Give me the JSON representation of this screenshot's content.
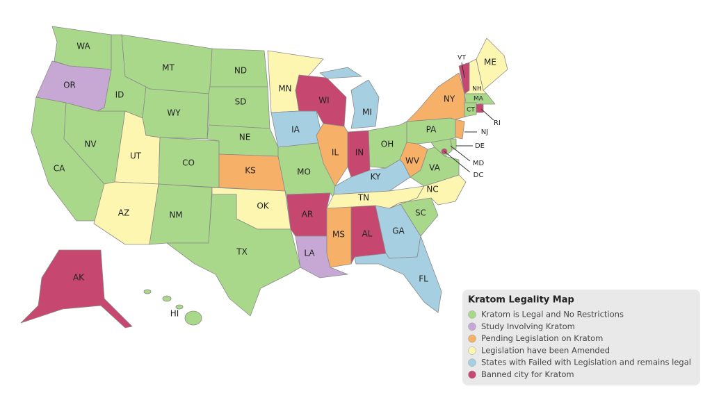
{
  "map": {
    "states": [
      {
        "label": "WA",
        "status": "Kratom is Legal and No Restrictions"
      },
      {
        "label": "OR",
        "status": "Study Involving Kratom"
      },
      {
        "label": "CA",
        "status": "Kratom is Legal and No Restrictions"
      },
      {
        "label": "NV",
        "status": "Kratom is Legal and No Restrictions"
      },
      {
        "label": "ID",
        "status": "Kratom is Legal and No Restrictions"
      },
      {
        "label": "MT",
        "status": "Kratom is Legal and No Restrictions"
      },
      {
        "label": "WY",
        "status": "Kratom is Legal and No Restrictions"
      },
      {
        "label": "UT",
        "status": "Legislation have been Amended"
      },
      {
        "label": "AZ",
        "status": "Legislation have been Amended"
      },
      {
        "label": "CO",
        "status": "Kratom is Legal and No Restrictions"
      },
      {
        "label": "NM",
        "status": "Kratom is Legal and No Restrictions"
      },
      {
        "label": "ND",
        "status": "Kratom is Legal and No Restrictions"
      },
      {
        "label": "SD",
        "status": "Kratom is Legal and No Restrictions"
      },
      {
        "label": "NE",
        "status": "Kratom is Legal and No Restrictions"
      },
      {
        "label": "KS",
        "status": "Pending Legislation on Kratom"
      },
      {
        "label": "OK",
        "status": "Legislation have been Amended"
      },
      {
        "label": "TX",
        "status": "Kratom is Legal and No Restrictions"
      },
      {
        "label": "MN",
        "status": "Legislation have been Amended"
      },
      {
        "label": "IA",
        "status": "States with Failed with Legislation and remains legal"
      },
      {
        "label": "MO",
        "status": "Kratom is Legal and No Restrictions"
      },
      {
        "label": "AR",
        "status": "Banned city for Kratom"
      },
      {
        "label": "LA",
        "status": "Study Involving Kratom"
      },
      {
        "label": "WI",
        "status": "Banned city for Kratom"
      },
      {
        "label": "IL",
        "status": "Pending Legislation on Kratom"
      },
      {
        "label": "MI",
        "status": "States with Failed with Legislation and remains legal"
      },
      {
        "label": "IN",
        "status": "Banned city for Kratom"
      },
      {
        "label": "OH",
        "status": "Kratom is Legal and No Restrictions"
      },
      {
        "label": "KY",
        "status": "States with Failed with Legislation and remains legal"
      },
      {
        "label": "TN",
        "status": "Legislation have been Amended"
      },
      {
        "label": "MS",
        "status": "Pending Legislation on Kratom"
      },
      {
        "label": "AL",
        "status": "Banned city for Kratom"
      },
      {
        "label": "GA",
        "status": "States with Failed with Legislation and remains legal"
      },
      {
        "label": "FL",
        "status": "States with Failed with Legislation and remains legal"
      },
      {
        "label": "SC",
        "status": "Kratom is Legal and No Restrictions"
      },
      {
        "label": "NC",
        "status": "Legislation have been Amended"
      },
      {
        "label": "VA",
        "status": "Kratom is Legal and No Restrictions"
      },
      {
        "label": "WV",
        "status": "Pending Legislation on Kratom"
      },
      {
        "label": "PA",
        "status": "Kratom is Legal and No Restrictions"
      },
      {
        "label": "NY",
        "status": "Pending Legislation on Kratom"
      },
      {
        "label": "VT",
        "status": "Banned city for Kratom"
      },
      {
        "label": "NH",
        "status": "Legislation have been Amended"
      },
      {
        "label": "ME",
        "status": "Legislation have been Amended"
      },
      {
        "label": "MA",
        "status": "Kratom is Legal and No Restrictions"
      },
      {
        "label": "CT",
        "status": "Kratom is Legal and No Restrictions"
      },
      {
        "label": "RI",
        "status": "Banned city for Kratom"
      },
      {
        "label": "NJ",
        "status": "Pending Legislation on Kratom"
      },
      {
        "label": "DE",
        "status": "Kratom is Legal and No Restrictions"
      },
      {
        "label": "MD",
        "status": "Kratom is Legal and No Restrictions"
      },
      {
        "label": "DC",
        "status": "Banned city for Kratom"
      },
      {
        "label": "AK",
        "status": "Banned city for Kratom"
      },
      {
        "label": "HI",
        "status": "Kratom is Legal and No Restrictions"
      }
    ]
  },
  "legend": {
    "title": "Kratom Legality Map",
    "items": [
      {
        "label": "Kratom is Legal and No Restrictions",
        "color": "#a9d88b"
      },
      {
        "label": "Study Involving Kratom",
        "color": "#c7a8d4"
      },
      {
        "label": "Pending Legislation on Kratom",
        "color": "#f6b067"
      },
      {
        "label": "Legislation have been Amended",
        "color": "#fcf6b1"
      },
      {
        "label": "States with Failed with Legislation and remains legal",
        "color": "#a6cfe1"
      },
      {
        "label": "Banned city for Kratom",
        "color": "#c6476f"
      }
    ]
  }
}
